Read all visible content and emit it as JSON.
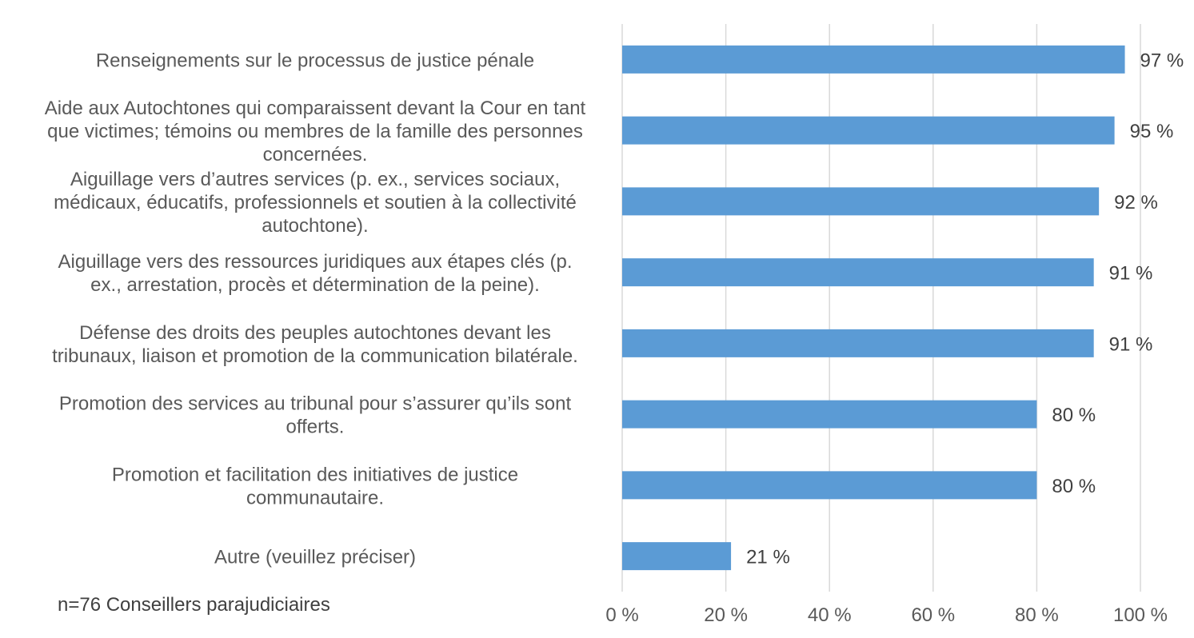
{
  "chart_data": {
    "type": "bar",
    "orientation": "horizontal",
    "categories": [
      [
        "Renseignements sur le processus de justice pénale"
      ],
      [
        "Aide aux Autochtones qui comparaissent devant la Cour en tant",
        "que victimes; témoins ou membres de la famille des personnes",
        "concernées."
      ],
      [
        "Aiguillage vers d’autres services (p. ex., services sociaux,",
        "médicaux, éducatifs, professionnels et soutien à la collectivité",
        "autochtone)."
      ],
      [
        "Aiguillage vers des ressources juridiques aux étapes clés (p.",
        "ex., arrestation, procès et détermination de la peine)."
      ],
      [
        "Défense des droits des peuples autochtones devant les",
        "tribunaux, liaison et promotion de la communication bilatérale."
      ],
      [
        "Promotion des services au tribunal pour s’assurer qu’ils sont",
        "offerts."
      ],
      [
        "Promotion et facilitation des initiatives de justice",
        "communautaire."
      ],
      [
        "Autre (veuillez préciser)"
      ]
    ],
    "values": [
      97,
      95,
      92,
      91,
      91,
      80,
      80,
      21
    ],
    "value_labels": [
      "97 %",
      "95 %",
      "92 %",
      "91 %",
      "91 %",
      "80 %",
      "80 %",
      "21 %"
    ],
    "xlim": [
      0,
      100
    ],
    "x_ticks": [
      0,
      20,
      40,
      60,
      80,
      100
    ],
    "x_tick_labels": [
      "0 %",
      "20 %",
      "40 %",
      "60 %",
      "80 %",
      "100 %"
    ],
    "grid": "vertical",
    "bar_color": "#5B9BD5",
    "note": "n=76 Conseillers parajudiciaires"
  }
}
